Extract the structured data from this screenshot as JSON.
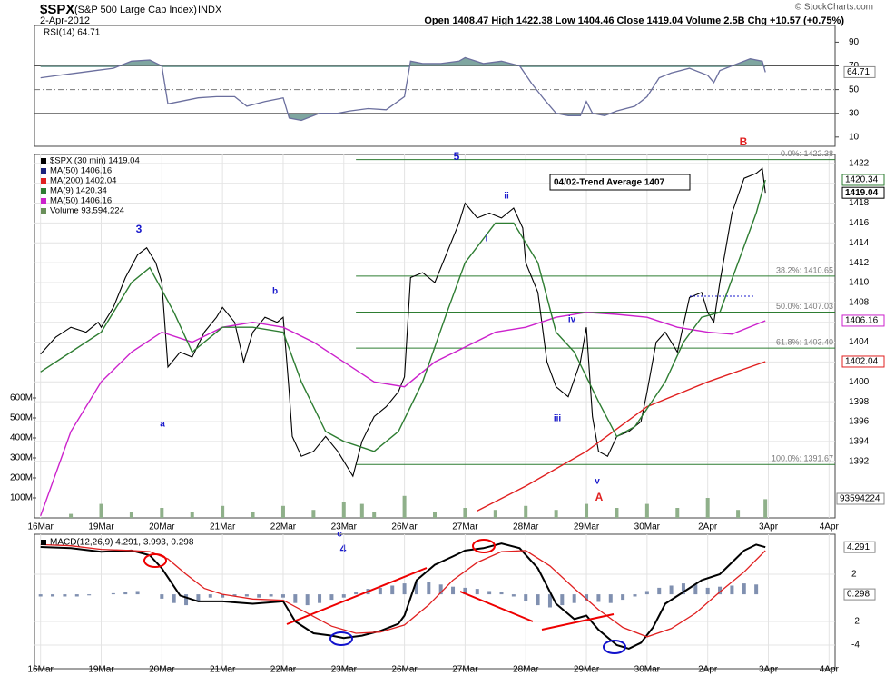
{
  "header": {
    "symbol": "$SPX",
    "name": "(S&P 500 Large Cap Index)",
    "exchange": "INDX",
    "date": "2-Apr-2012",
    "quote": "Open 1408.47  High 1422.38  Low 1404.46  Close 1419.04  Volume 2.5B  Chg +10.57 (+0.75%)",
    "copyright": "© StockCharts.com"
  },
  "chart_data": [
    {
      "type": "rsi",
      "label": "RSI(14) 64.71",
      "color": "#6b6f9e",
      "fill": "#7fa6a0",
      "xlim": [
        -0.1,
        13.1
      ],
      "ylim": [
        2.2,
        104.1
      ],
      "yticks": [
        10,
        30,
        50,
        70,
        90
      ],
      "levels": [
        70,
        30
      ],
      "midline": 50,
      "last": {
        "value": 64.71
      },
      "x": [
        0,
        0.3,
        0.6,
        0.9,
        1.2,
        1.5,
        1.8,
        2.0,
        2.1,
        2.3,
        2.6,
        2.9,
        3.2,
        3.4,
        3.7,
        4.0,
        4.1,
        4.3,
        4.6,
        4.9,
        5.1,
        5.4,
        5.7,
        6.0,
        6.1,
        6.3,
        6.6,
        6.9,
        7.0,
        7.3,
        7.6,
        7.9,
        8.1,
        8.3,
        8.5,
        8.7,
        8.9,
        9.0,
        9.1,
        9.3,
        9.5,
        9.8,
        10.0,
        10.2,
        10.4,
        10.7,
        11.0,
        11.1,
        11.2,
        11.5,
        11.7,
        11.9,
        11.95
      ],
      "values": [
        60,
        62,
        64,
        66,
        68,
        74,
        75,
        70,
        38,
        40,
        43,
        44,
        44,
        36,
        40,
        43,
        26,
        24,
        30,
        30,
        32,
        34,
        33,
        44,
        74,
        72,
        72,
        74,
        77,
        72,
        74,
        70,
        55,
        42,
        30,
        28,
        28,
        40,
        30,
        28,
        32,
        36,
        44,
        60,
        64,
        68,
        62,
        56,
        66,
        72,
        76,
        74,
        64.71
      ]
    },
    {
      "type": "price",
      "xlim": [
        -0.1,
        13.1
      ],
      "ylim": [
        1386.3,
        1422.9
      ],
      "yticks": [
        1392,
        1394,
        1396,
        1398,
        1400,
        1402,
        1404,
        1406,
        1408,
        1410,
        1412,
        1414,
        1416,
        1418,
        1420,
        1422
      ],
      "grid": true,
      "xticks": [
        {
          "value": 0,
          "label": "16Mar"
        },
        {
          "value": 1,
          "label": "19Mar"
        },
        {
          "value": 2,
          "label": "20Mar"
        },
        {
          "value": 3,
          "label": "21Mar"
        },
        {
          "value": 4,
          "label": "22Mar"
        },
        {
          "value": 5,
          "label": "23Mar"
        },
        {
          "value": 6,
          "label": "26Mar"
        },
        {
          "value": 7,
          "label": "27Mar"
        },
        {
          "value": 8,
          "label": "28Mar"
        },
        {
          "value": 9,
          "label": "29Mar"
        },
        {
          "value": 10,
          "label": "30Mar"
        },
        {
          "value": 11,
          "label": "2Apr"
        },
        {
          "value": 12,
          "label": "3Apr"
        },
        {
          "value": 13,
          "label": "4Apr"
        }
      ],
      "legend": [
        {
          "text": "$SPX (30 min) 1419.04",
          "color": "#000000"
        },
        {
          "text": "MA(50) 1406.16",
          "color": "#1a237e"
        },
        {
          "text": "MA(200) 1402.04",
          "color": "#e02020"
        },
        {
          "text": "MA(9) 1420.34",
          "color": "#2e7d32"
        },
        {
          "text": "MA(50) 1406.16",
          "color": "#cc22cc"
        },
        {
          "text": "Volume 93,594,224",
          "color": "#6a8f5a"
        }
      ],
      "series": [
        {
          "color": "#000000",
          "x": [
            0,
            0.25,
            0.5,
            0.75,
            0.95,
            1.0,
            1.2,
            1.4,
            1.6,
            1.75,
            1.9,
            2.0,
            2.1,
            2.3,
            2.5,
            2.7,
            2.9,
            3.0,
            3.2,
            3.35,
            3.5,
            3.7,
            3.9,
            4.0,
            4.1,
            4.15,
            4.3,
            4.5,
            4.7,
            4.9,
            5.0,
            5.15,
            5.3,
            5.5,
            5.7,
            5.9,
            6.0,
            6.1,
            6.3,
            6.5,
            6.7,
            6.9,
            7.0,
            7.2,
            7.4,
            7.6,
            7.8,
            7.95,
            8.0,
            8.2,
            8.35,
            8.5,
            8.7,
            8.9,
            9.0,
            9.1,
            9.2,
            9.35,
            9.5,
            9.7,
            9.9,
            10.0,
            10.15,
            10.3,
            10.5,
            10.7,
            10.9,
            11.0,
            11.1,
            11.2,
            11.4,
            11.6,
            11.8,
            11.9,
            11.95
          ],
          "values": [
            1402.8,
            1404.5,
            1405.5,
            1405.0,
            1406.0,
            1405.5,
            1407.5,
            1410.5,
            1412.8,
            1413.5,
            1412.0,
            1410.0,
            1401.5,
            1403.0,
            1402.5,
            1405.0,
            1406.5,
            1407.5,
            1406.0,
            1402.0,
            1405.0,
            1406.5,
            1406.0,
            1406.5,
            1399.0,
            1394.5,
            1392.5,
            1393.0,
            1394.5,
            1393.0,
            1392.0,
            1390.5,
            1394.0,
            1396.5,
            1397.5,
            1399.0,
            1400.5,
            1410.5,
            1411.0,
            1410.0,
            1413.0,
            1416.0,
            1418.0,
            1416.5,
            1417.0,
            1416.5,
            1417.5,
            1415.5,
            1412.0,
            1409.0,
            1402.0,
            1399.5,
            1398.5,
            1402.0,
            1405.5,
            1396.5,
            1393.0,
            1392.5,
            1394.5,
            1395.0,
            1396.0,
            1399.0,
            1404.0,
            1405.0,
            1403.0,
            1408.5,
            1409.0,
            1407.0,
            1406.0,
            1410.0,
            1417.0,
            1420.5,
            1421.0,
            1421.5,
            1419.04
          ]
        },
        {
          "color": "#cc22cc",
          "x": [
            0,
            0.5,
            1,
            1.5,
            2,
            2.5,
            3,
            3.5,
            4,
            4.5,
            5,
            5.5,
            6,
            6.5,
            7,
            7.5,
            8,
            8.5,
            9,
            9.5,
            10,
            10.5,
            11,
            11.4,
            11.95
          ],
          "values": [
            1386.5,
            1395,
            1400,
            1403,
            1405,
            1404,
            1405.5,
            1406,
            1405.5,
            1404,
            1402,
            1400,
            1399.5,
            1402,
            1403.5,
            1405,
            1405.5,
            1406.5,
            1407,
            1406.8,
            1406.5,
            1405.5,
            1405,
            1404.8,
            1406.16
          ]
        },
        {
          "color": "#e02020",
          "x": [
            7.2,
            8,
            9,
            10,
            11,
            11.95
          ],
          "values": [
            1387,
            1389.5,
            1393,
            1397.5,
            1400,
            1402.04
          ]
        },
        {
          "color": "#2e7d32",
          "x": [
            0,
            0.5,
            1,
            1.5,
            1.8,
            2.2,
            2.5,
            3,
            3.5,
            4,
            4.3,
            4.7,
            5,
            5.5,
            5.9,
            6.3,
            6.7,
            7,
            7.5,
            7.8,
            8.2,
            8.5,
            8.8,
            9.2,
            9.5,
            9.8,
            10.3,
            10.6,
            10.9,
            11.2,
            11.5,
            11.8,
            11.95
          ],
          "values": [
            1401,
            1403,
            1405,
            1410,
            1411.5,
            1407,
            1403,
            1405.5,
            1405.5,
            1405,
            1400,
            1395,
            1394,
            1393,
            1395,
            1400,
            1407,
            1412,
            1416,
            1416,
            1412,
            1405,
            1403,
            1398,
            1394.5,
            1395.5,
            1400,
            1404,
            1406.5,
            1407,
            1412,
            1417,
            1420.34
          ]
        }
      ],
      "volume": {
        "color": "#8fb08a",
        "y2lim": [
          0,
          1818000000
        ],
        "y2ticks": [
          {
            "value": 100000000,
            "label": "100M"
          },
          {
            "value": 200000000,
            "label": "200M"
          },
          {
            "value": 300000000,
            "label": "300M"
          },
          {
            "value": 400000000,
            "label": "400M"
          },
          {
            "value": 500000000,
            "label": "500M"
          },
          {
            "value": 600000000,
            "label": "600M"
          }
        ],
        "x": [
          0.5,
          1.0,
          1.5,
          2.0,
          2.5,
          3.0,
          3.5,
          4.0,
          4.5,
          5.0,
          5.3,
          5.5,
          6.0,
          6.5,
          7.0,
          7.5,
          8.0,
          8.5,
          9.0,
          9.5,
          10.0,
          10.5,
          11.0,
          11.5,
          11.95
        ],
        "values": [
          20000000,
          70000000,
          30000000,
          50000000,
          30000000,
          60000000,
          30000000,
          60000000,
          40000000,
          80000000,
          70000000,
          30000000,
          110000000,
          30000000,
          50000000,
          40000000,
          60000000,
          40000000,
          70000000,
          50000000,
          70000000,
          50000000,
          100000000,
          40000000,
          93594224
        ],
        "last": 93594224
      },
      "fib": {
        "color": "#2e7d32",
        "x_start": 5.2,
        "levels": [
          {
            "value": 1422.38,
            "label": "0.0%: 1422.38"
          },
          {
            "value": 1410.65,
            "label": "38.2%: 1410.65"
          },
          {
            "value": 1407.03,
            "label": "50.0%: 1407.03"
          },
          {
            "value": 1403.4,
            "label": "61.8%: 1403.40"
          },
          {
            "value": 1391.67,
            "label": "100.0%: 1391.67"
          }
        ]
      },
      "last_values": [
        {
          "value": 1420.34,
          "color": "#2e7d32"
        },
        {
          "value": 1419.04,
          "color": "#000000"
        },
        {
          "value": 1406.16,
          "color": "#cc22cc"
        },
        {
          "value": 1402.04,
          "color": "#e02020"
        }
      ],
      "note": "04/02-Trend Average 1407",
      "waves": [
        {
          "text": "3",
          "color": "#1a1acc"
        },
        {
          "text": "a",
          "color": "#1a1acc"
        },
        {
          "text": "b",
          "color": "#1a1acc"
        },
        {
          "text": "c",
          "color": "#1a1acc"
        },
        {
          "text": "4",
          "color": "#1a1acc"
        },
        {
          "text": "5",
          "color": "#1a1acc"
        },
        {
          "text": "i",
          "color": "#1a1acc"
        },
        {
          "text": "ii",
          "color": "#1a1acc"
        },
        {
          "text": "iii",
          "color": "#1a1acc"
        },
        {
          "text": "iv",
          "color": "#1a1acc"
        },
        {
          "text": "v",
          "color": "#1a1acc"
        },
        {
          "text": "A",
          "color": "#e02020"
        },
        {
          "text": "B",
          "color": "#e02020"
        }
      ]
    },
    {
      "type": "macd",
      "label": "MACD(12,26,9) 4.291, 3.993, 0.298",
      "xlim": [
        -0.1,
        13.1
      ],
      "ylim": [
        -6.0,
        5.38
      ],
      "yticks": [
        -4,
        -2,
        2
      ],
      "xticks": [
        {
          "value": 0,
          "label": "16Mar"
        },
        {
          "value": 1,
          "label": "19Mar"
        },
        {
          "value": 2,
          "label": "20Mar"
        },
        {
          "value": 3,
          "label": "21Mar"
        },
        {
          "value": 4,
          "label": "22Mar"
        },
        {
          "value": 5,
          "label": "23Mar"
        },
        {
          "value": 6,
          "label": "26Mar"
        },
        {
          "value": 7,
          "label": "27Mar"
        },
        {
          "value": 8,
          "label": "28Mar"
        },
        {
          "value": 9,
          "label": "29Mar"
        },
        {
          "value": 10,
          "label": "30Mar"
        },
        {
          "value": 11,
          "label": "2Apr"
        },
        {
          "value": 12,
          "label": "3Apr"
        },
        {
          "value": 13,
          "label": "4Apr"
        }
      ],
      "last_values": [
        {
          "value": 4.291
        },
        {
          "value": 0.298
        }
      ],
      "series": [
        {
          "color": "#000000",
          "x": [
            0,
            0.5,
            1,
            1.5,
            1.8,
            2.0,
            2.3,
            2.6,
            3.0,
            3.5,
            4.0,
            4.2,
            4.5,
            4.8,
            5.0,
            5.3,
            5.6,
            5.9,
            6.0,
            6.2,
            6.5,
            6.8,
            7.0,
            7.3,
            7.6,
            7.9,
            8.2,
            8.5,
            8.8,
            9.0,
            9.2,
            9.5,
            9.7,
            9.9,
            10.1,
            10.3,
            10.6,
            10.9,
            11.2,
            11.4,
            11.6,
            11.8,
            11.95
          ],
          "values": [
            4.3,
            4.2,
            3.9,
            4.0,
            3.6,
            2.5,
            0.2,
            -0.3,
            -0.3,
            -0.5,
            -0.3,
            -2.0,
            -3.0,
            -3.2,
            -3.4,
            -3.2,
            -2.8,
            -2.2,
            -1.5,
            1.5,
            2.8,
            3.5,
            4.0,
            4.2,
            4.6,
            4.2,
            2.5,
            -0.5,
            -1.8,
            -1.5,
            -2.7,
            -4.0,
            -4.3,
            -3.8,
            -2.5,
            -0.5,
            0.5,
            1.5,
            2.0,
            3.0,
            4.0,
            4.5,
            4.291
          ]
        },
        {
          "color": "#e02020",
          "x": [
            0,
            0.5,
            1,
            1.5,
            1.8,
            2.1,
            2.4,
            2.7,
            3.0,
            3.5,
            4.0,
            4.4,
            4.8,
            5.2,
            5.6,
            6.0,
            6.4,
            6.8,
            7.2,
            7.6,
            8.0,
            8.4,
            8.8,
            9.2,
            9.6,
            10.0,
            10.4,
            10.8,
            11.2,
            11.6,
            11.95
          ],
          "values": [
            4.5,
            4.4,
            4.1,
            4.0,
            3.9,
            3.3,
            2.0,
            0.8,
            0.3,
            -0.1,
            -0.2,
            -1.3,
            -2.4,
            -3.0,
            -2.9,
            -2.3,
            -0.6,
            1.5,
            3.0,
            3.9,
            4.0,
            2.7,
            0.8,
            -1.0,
            -2.5,
            -3.3,
            -2.6,
            -1.3,
            0.5,
            2.2,
            3.993
          ]
        }
      ],
      "histogram": {
        "color": "#8090b0",
        "x": [
          0,
          0.2,
          0.4,
          0.6,
          0.8,
          1.0,
          1.2,
          1.4,
          1.6,
          1.8,
          2.0,
          2.2,
          2.4,
          2.6,
          2.8,
          3.0,
          3.2,
          3.4,
          3.6,
          3.8,
          4.0,
          4.2,
          4.4,
          4.6,
          4.8,
          5.0,
          5.2,
          5.4,
          5.6,
          5.8,
          6.0,
          6.2,
          6.4,
          6.6,
          6.8,
          7.0,
          7.2,
          7.4,
          7.6,
          7.8,
          8.0,
          8.2,
          8.4,
          8.6,
          8.8,
          9.0,
          9.2,
          9.4,
          9.6,
          9.8,
          10.0,
          10.2,
          10.4,
          10.6,
          10.8,
          11.0,
          11.2,
          11.4,
          11.6,
          11.8
        ],
        "values": [
          -0.2,
          -0.2,
          -0.2,
          -0.2,
          -0.1,
          0.0,
          0.1,
          0.2,
          0.3,
          0.0,
          -0.4,
          -0.8,
          -1.0,
          -0.6,
          -0.3,
          -0.3,
          -0.2,
          -0.2,
          -0.3,
          -0.2,
          -0.3,
          -0.8,
          -1.0,
          -0.8,
          -0.5,
          -0.3,
          0.2,
          0.5,
          0.6,
          0.8,
          1.0,
          1.2,
          1.1,
          0.9,
          0.7,
          0.6,
          0.5,
          0.3,
          0.2,
          -0.2,
          -0.6,
          -1.0,
          -1.2,
          -1.0,
          -0.8,
          -0.6,
          -0.7,
          -0.8,
          -0.5,
          -0.2,
          0.3,
          0.6,
          0.8,
          1.0,
          0.9,
          0.6,
          0.7,
          0.8,
          1.0,
          0.9
        ]
      }
    }
  ]
}
